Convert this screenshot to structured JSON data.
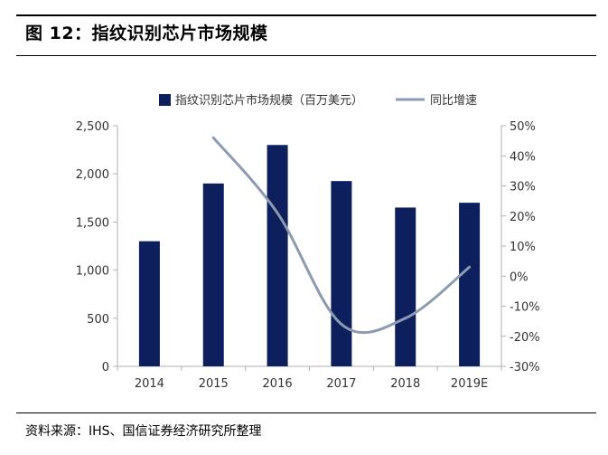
{
  "figure": {
    "title": "图 12：指纹识别芯片市场规模",
    "source": "资料来源：IHS、国信证券经济研究所整理"
  },
  "colors": {
    "bar": "#0d1f5c",
    "line": "#8c9bb0",
    "axis": "#b0b0b0"
  },
  "chart_data": {
    "type": "bar",
    "categories": [
      "2014",
      "2015",
      "2016",
      "2017",
      "2018",
      "2019E"
    ],
    "series": [
      {
        "name": "指纹识别芯片市场规模（百万美元）",
        "type": "bar",
        "axis": "left",
        "values": [
          1300,
          1900,
          2300,
          1925,
          1650,
          1700
        ]
      },
      {
        "name": "同比增速",
        "type": "line",
        "axis": "right",
        "values": [
          null,
          46,
          21,
          -16,
          -14,
          3
        ]
      }
    ],
    "ylim_left": [
      0,
      2500
    ],
    "yticks_left": [
      "0",
      "500",
      "1,000",
      "1,500",
      "2,000",
      "2,500"
    ],
    "ylim_right": [
      -30,
      50
    ],
    "yticks_right": [
      "-30%",
      "-20%",
      "-10%",
      "0%",
      "10%",
      "20%",
      "30%",
      "40%",
      "50%"
    ],
    "grid": false,
    "legend": "top-center"
  }
}
